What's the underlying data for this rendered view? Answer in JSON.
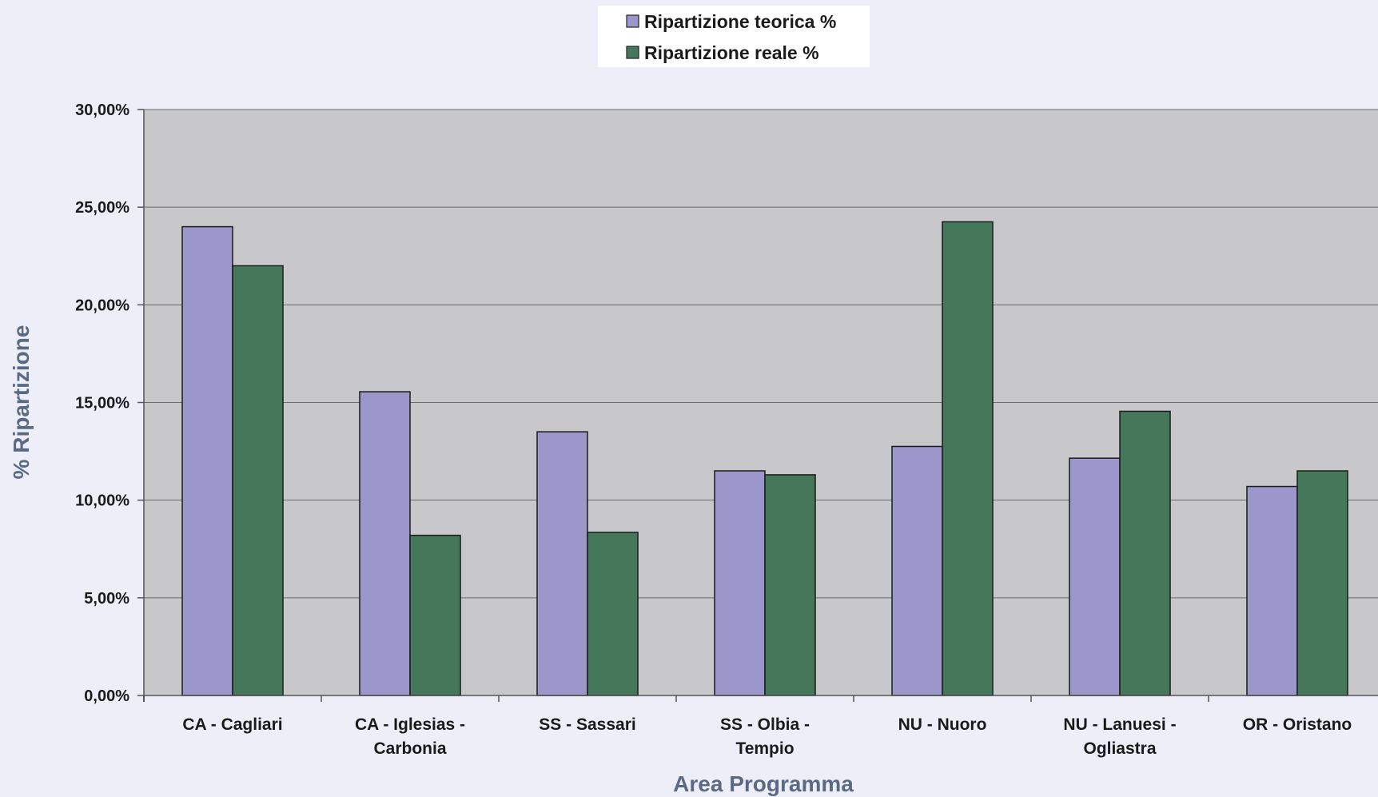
{
  "chart_data": {
    "type": "bar",
    "categories": [
      [
        "CA - Cagliari"
      ],
      [
        "CA - Iglesias -",
        "Carbonia"
      ],
      [
        "SS - Sassari"
      ],
      [
        "SS - Olbia -",
        "Tempio"
      ],
      [
        "NU - Nuoro"
      ],
      [
        "NU - Lanuesi -",
        "Ogliastra"
      ],
      [
        "OR - Oristano"
      ]
    ],
    "series": [
      {
        "name": "Ripartizione teorica %",
        "color": "#9B97CB",
        "values": [
          24.0,
          15.55,
          13.5,
          11.5,
          12.75,
          12.15,
          10.7
        ]
      },
      {
        "name": "Ripartizione reale %",
        "color": "#45785A",
        "values": [
          22.0,
          8.2,
          8.35,
          11.3,
          24.25,
          14.55,
          11.5
        ]
      }
    ],
    "xlabel": "Area Programma",
    "ylabel": "% Ripartizione",
    "ylim": [
      0,
      30
    ],
    "yticks": [
      "0,00%",
      "5,00%",
      "10,00%",
      "15,00%",
      "20,00%",
      "25,00%",
      "30,00%"
    ],
    "grid": true,
    "legend_position": "top"
  }
}
